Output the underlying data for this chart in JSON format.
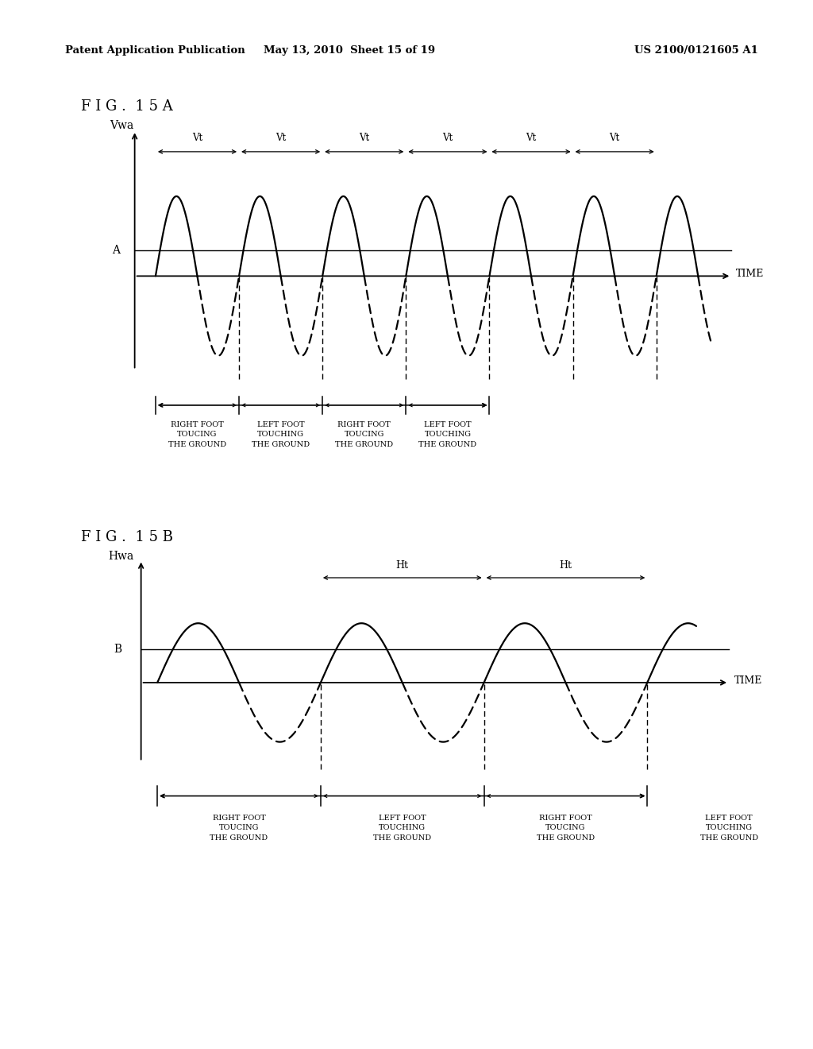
{
  "header_text": "Patent Application Publication    May 13, 2010  Sheet 15 of 19    US 2100/0121605 A1",
  "header_left": "Patent Application Publication",
  "header_mid": "May 13, 2010  Sheet 15 of 19",
  "header_right": "US 2100/0121605 A1",
  "fig_a_label": "F I G .  1 5 A",
  "fig_b_label": "F I G .  1 5 B",
  "fig_a_ylabel": "Vwa",
  "fig_b_ylabel": "Hwa",
  "xlabel": "TIME",
  "threshold_label_a": "A",
  "threshold_label_b": "B",
  "vt_label": "Vt",
  "ht_label": "Ht",
  "foot_label_1": "RIGHT FOOT\nTOUCING\nTHE GROUND",
  "foot_label_2": "LEFT FOOT\nTOUCHING\nTHE GROUND",
  "foot_label_3": "RIGHT FOOT\nTOUCING\nTHE GROUND",
  "foot_label_4": "LEFT FOOT\nTOUCHING\nTHE GROUND",
  "bg_color": "#ffffff",
  "line_color": "#000000"
}
